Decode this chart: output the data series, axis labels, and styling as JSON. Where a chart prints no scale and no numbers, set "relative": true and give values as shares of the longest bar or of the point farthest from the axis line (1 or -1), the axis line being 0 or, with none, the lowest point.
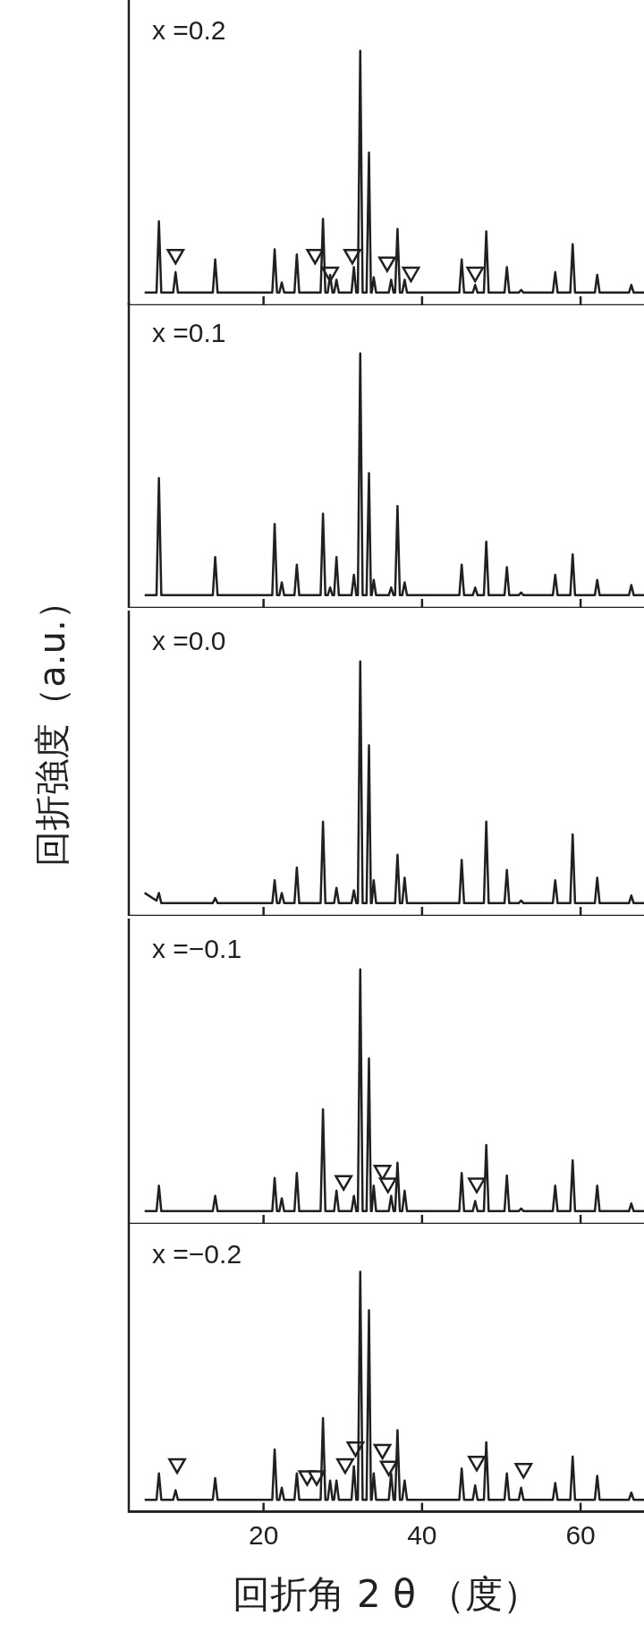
{
  "chart_data": [
    {
      "type": "line",
      "title": "x =0.2",
      "relative": true,
      "xlim": [
        3,
        68
      ],
      "xticks": [
        20,
        40,
        60
      ],
      "tick_labels": false,
      "x": [
        5,
        6.5,
        6.8,
        7.1,
        8.6,
        8.9,
        9.2,
        13.6,
        13.9,
        14.2,
        21.1,
        21.4,
        21.7,
        22.0,
        22.3,
        22.6,
        23.9,
        24.2,
        24.5,
        27.2,
        27.5,
        27.8,
        28.1,
        28.4,
        28.7,
        28.9,
        29.2,
        29.5,
        31.1,
        31.4,
        31.7,
        31.9,
        32.2,
        32.5,
        33.0,
        33.3,
        33.55,
        33.65,
        33.9,
        34.2,
        35.8,
        36.1,
        36.4,
        36.6,
        36.9,
        37.2,
        37.5,
        37.8,
        38.1,
        44.7,
        45.0,
        45.3,
        46.4,
        46.7,
        47.0,
        47.8,
        48.1,
        48.4,
        50.4,
        50.7,
        51.0,
        52.2,
        52.5,
        52.8,
        56.5,
        56.8,
        57.1,
        58.7,
        59.0,
        59.3,
        61.8,
        62.1,
        62.4,
        66.1,
        66.4,
        66.7,
        68
      ],
      "series": [
        {
          "color": "#231f20",
          "marker": "none",
          "values": [
            0.05,
            0.05,
            0.33,
            0.05,
            0.05,
            0.13,
            0.05,
            0.05,
            0.18,
            0.05,
            0.05,
            0.22,
            0.05,
            0.05,
            0.09,
            0.05,
            0.05,
            0.2,
            0.05,
            0.05,
            0.34,
            0.05,
            0.05,
            0.12,
            0.05,
            0.05,
            0.1,
            0.05,
            0.05,
            0.15,
            0.05,
            0.05,
            1,
            0.05,
            0.05,
            0.6,
            0.05,
            0.05,
            0.11,
            0.05,
            0.05,
            0.1,
            0.05,
            0.05,
            0.3,
            0.05,
            0.05,
            0.1,
            0.05,
            0.05,
            0.18,
            0.05,
            0.05,
            0.08,
            0.05,
            0.05,
            0.29,
            0.05,
            0.05,
            0.15,
            0.05,
            0.05,
            0.06,
            0.05,
            0.05,
            0.13,
            0.05,
            0.05,
            0.24,
            0.05,
            0.05,
            0.12,
            0.05,
            0.05,
            0.08,
            0.05,
            0.05
          ]
        },
        {
          "type": "scatter",
          "color": "#231f20",
          "marker": "triangle",
          "x": [
            8.9,
            26.5,
            28.4,
            31.2,
            35.6,
            38.6,
            46.7
          ],
          "values": [
            0.2,
            0.2,
            0.13,
            0.2,
            0.17,
            0.13,
            0.13
          ]
        }
      ]
    },
    {
      "type": "line",
      "title": "x =0.1",
      "relative": true,
      "xlim": [
        3,
        68
      ],
      "xticks": [
        20,
        40,
        60
      ],
      "tick_labels": false,
      "x": [
        5,
        6.5,
        6.8,
        7.1,
        8.6,
        8.9,
        9.2,
        13.6,
        13.9,
        14.2,
        21.1,
        21.4,
        21.7,
        22.0,
        22.3,
        22.6,
        23.9,
        24.2,
        24.5,
        27.2,
        27.5,
        27.8,
        28.1,
        28.4,
        28.7,
        28.9,
        29.2,
        29.5,
        31.1,
        31.4,
        31.7,
        31.9,
        32.2,
        32.5,
        33.0,
        33.3,
        33.55,
        33.65,
        33.9,
        34.2,
        35.8,
        36.1,
        36.4,
        36.6,
        36.9,
        37.2,
        37.5,
        37.8,
        38.1,
        44.7,
        45.0,
        45.3,
        46.4,
        46.7,
        47.0,
        47.8,
        48.1,
        48.4,
        50.4,
        50.7,
        51.0,
        52.2,
        52.5,
        52.8,
        56.5,
        56.8,
        57.1,
        58.7,
        59.0,
        59.3,
        61.8,
        62.1,
        62.4,
        66.1,
        66.4,
        66.7,
        68
      ],
      "series": [
        {
          "color": "#231f20",
          "marker": "none",
          "values": [
            0.05,
            0.05,
            0.51,
            0.05,
            0.05,
            0.05,
            0.05,
            0.05,
            0.2,
            0.05,
            0.05,
            0.33,
            0.05,
            0.05,
            0.1,
            0.05,
            0.05,
            0.17,
            0.05,
            0.05,
            0.37,
            0.05,
            0.05,
            0.08,
            0.05,
            0.05,
            0.2,
            0.05,
            0.05,
            0.13,
            0.05,
            0.05,
            1,
            0.05,
            0.05,
            0.53,
            0.05,
            0.05,
            0.11,
            0.05,
            0.05,
            0.08,
            0.05,
            0.05,
            0.4,
            0.05,
            0.05,
            0.1,
            0.05,
            0.05,
            0.17,
            0.05,
            0.05,
            0.08,
            0.05,
            0.05,
            0.26,
            0.05,
            0.05,
            0.16,
            0.05,
            0.05,
            0.06,
            0.05,
            0.05,
            0.13,
            0.05,
            0.05,
            0.21,
            0.05,
            0.05,
            0.11,
            0.05,
            0.05,
            0.09,
            0.05,
            0.05
          ]
        }
      ]
    },
    {
      "type": "line",
      "title": "x =0.0",
      "ylabel": "回折強度（a.u.）",
      "relative": true,
      "xlim": [
        3,
        68
      ],
      "xticks": [
        20,
        40,
        60
      ],
      "tick_labels": false,
      "x": [
        5,
        6.5,
        6.8,
        7.1,
        8.6,
        8.9,
        9.2,
        13.6,
        13.9,
        14.2,
        21.1,
        21.4,
        21.7,
        22.0,
        22.3,
        22.6,
        23.9,
        24.2,
        24.5,
        27.2,
        27.5,
        27.8,
        28.1,
        28.4,
        28.7,
        28.9,
        29.2,
        29.5,
        31.1,
        31.4,
        31.7,
        31.9,
        32.2,
        32.5,
        33.0,
        33.3,
        33.55,
        33.65,
        33.9,
        34.2,
        35.8,
        36.1,
        36.4,
        36.6,
        36.9,
        37.2,
        37.5,
        37.8,
        38.1,
        44.7,
        45.0,
        45.3,
        46.4,
        46.7,
        47.0,
        47.8,
        48.1,
        48.4,
        50.4,
        50.7,
        51.0,
        52.2,
        52.5,
        52.8,
        56.5,
        56.8,
        57.1,
        58.7,
        59.0,
        59.3,
        61.8,
        62.1,
        62.4,
        66.1,
        66.4,
        66.7,
        68
      ],
      "series": [
        {
          "color": "#231f20",
          "marker": "none",
          "values": [
            0.09,
            0.06,
            0.09,
            0.05,
            0.05,
            0.05,
            0.05,
            0.05,
            0.07,
            0.05,
            0.05,
            0.14,
            0.05,
            0.05,
            0.09,
            0.05,
            0.05,
            0.19,
            0.05,
            0.05,
            0.37,
            0.05,
            0.05,
            0.05,
            0.05,
            0.05,
            0.11,
            0.05,
            0.05,
            0.1,
            0.05,
            0.05,
            1,
            0.05,
            0.05,
            0.67,
            0.05,
            0.05,
            0.14,
            0.05,
            0.05,
            0.05,
            0.05,
            0.05,
            0.24,
            0.05,
            0.05,
            0.15,
            0.05,
            0.05,
            0.22,
            0.05,
            0.05,
            0.05,
            0.05,
            0.05,
            0.37,
            0.05,
            0.05,
            0.18,
            0.05,
            0.05,
            0.06,
            0.05,
            0.05,
            0.14,
            0.05,
            0.05,
            0.32,
            0.05,
            0.05,
            0.15,
            0.05,
            0.05,
            0.08,
            0.05,
            0.05
          ]
        }
      ]
    },
    {
      "type": "line",
      "title": "x =−0.1",
      "relative": true,
      "xlim": [
        3,
        68
      ],
      "xticks": [
        20,
        40,
        60
      ],
      "tick_labels": false,
      "x": [
        5,
        6.5,
        6.8,
        7.1,
        8.6,
        8.9,
        9.2,
        13.6,
        13.9,
        14.2,
        21.1,
        21.4,
        21.7,
        22.0,
        22.3,
        22.6,
        23.9,
        24.2,
        24.5,
        27.2,
        27.5,
        27.8,
        28.1,
        28.4,
        28.7,
        28.9,
        29.2,
        29.5,
        31.1,
        31.4,
        31.7,
        31.9,
        32.2,
        32.5,
        33.0,
        33.3,
        33.55,
        33.65,
        33.9,
        34.2,
        35.8,
        36.1,
        36.4,
        36.6,
        36.9,
        37.2,
        37.5,
        37.8,
        38.1,
        44.7,
        45.0,
        45.3,
        46.4,
        46.7,
        47.0,
        47.8,
        48.1,
        48.4,
        50.4,
        50.7,
        51.0,
        52.2,
        52.5,
        52.8,
        56.5,
        56.8,
        57.1,
        58.7,
        59.0,
        59.3,
        61.8,
        62.1,
        62.4,
        66.1,
        66.4,
        66.7,
        68
      ],
      "series": [
        {
          "color": "#231f20",
          "marker": "none",
          "values": [
            0.05,
            0.05,
            0.15,
            0.05,
            0.05,
            0.05,
            0.05,
            0.05,
            0.11,
            0.05,
            0.05,
            0.18,
            0.05,
            0.05,
            0.1,
            0.05,
            0.05,
            0.2,
            0.05,
            0.05,
            0.45,
            0.05,
            0.05,
            0.05,
            0.05,
            0.05,
            0.13,
            0.05,
            0.05,
            0.11,
            0.05,
            0.05,
            1,
            0.05,
            0.05,
            0.65,
            0.05,
            0.05,
            0.15,
            0.05,
            0.05,
            0.11,
            0.05,
            0.05,
            0.24,
            0.05,
            0.05,
            0.13,
            0.05,
            0.05,
            0.2,
            0.05,
            0.05,
            0.09,
            0.05,
            0.05,
            0.31,
            0.05,
            0.05,
            0.19,
            0.05,
            0.05,
            0.06,
            0.05,
            0.05,
            0.15,
            0.05,
            0.05,
            0.25,
            0.05,
            0.05,
            0.15,
            0.05,
            0.05,
            0.08,
            0.05,
            0.05
          ]
        },
        {
          "type": "scatter",
          "color": "#231f20",
          "marker": "triangle",
          "x": [
            30.1,
            35.0,
            35.7,
            46.9
          ],
          "values": [
            0.17,
            0.21,
            0.16,
            0.16
          ]
        }
      ]
    },
    {
      "type": "line",
      "title": "x =−0.2",
      "xlabel": "回折角 2 θ （度）",
      "relative": true,
      "xlim": [
        3,
        68
      ],
      "xticks": [
        20,
        40,
        60
      ],
      "tick_labels": "x",
      "x": [
        5,
        6.5,
        6.8,
        7.1,
        8.6,
        8.9,
        9.2,
        13.6,
        13.9,
        14.2,
        21.1,
        21.4,
        21.7,
        22.0,
        22.3,
        22.6,
        23.9,
        24.2,
        24.5,
        27.2,
        27.5,
        27.8,
        28.1,
        28.4,
        28.7,
        28.9,
        29.2,
        29.5,
        31.1,
        31.4,
        31.7,
        31.9,
        32.2,
        32.5,
        33.0,
        33.3,
        33.55,
        33.65,
        33.9,
        34.2,
        35.8,
        36.1,
        36.4,
        36.6,
        36.9,
        37.2,
        37.5,
        37.8,
        38.1,
        44.7,
        45.0,
        45.3,
        46.4,
        46.7,
        47.0,
        47.8,
        48.1,
        48.4,
        50.4,
        50.7,
        51.0,
        52.2,
        52.5,
        52.8,
        56.5,
        56.8,
        57.1,
        58.7,
        59.0,
        59.3,
        61.8,
        62.1,
        62.4,
        66.1,
        66.4,
        66.7,
        68
      ],
      "series": [
        {
          "color": "#231f20",
          "marker": "none",
          "values": [
            0.05,
            0.05,
            0.16,
            0.05,
            0.05,
            0.09,
            0.05,
            0.05,
            0.14,
            0.05,
            0.05,
            0.26,
            0.05,
            0.05,
            0.1,
            0.05,
            0.05,
            0.16,
            0.05,
            0.05,
            0.39,
            0.05,
            0.05,
            0.13,
            0.05,
            0.05,
            0.13,
            0.05,
            0.05,
            0.19,
            0.05,
            0.05,
            1,
            0.05,
            0.05,
            0.84,
            0.05,
            0.05,
            0.16,
            0.05,
            0.05,
            0.16,
            0.05,
            0.05,
            0.34,
            0.05,
            0.05,
            0.13,
            0.05,
            0.05,
            0.18,
            0.05,
            0.05,
            0.11,
            0.05,
            0.05,
            0.29,
            0.05,
            0.05,
            0.16,
            0.05,
            0.05,
            0.1,
            0.05,
            0.05,
            0.12,
            0.05,
            0.05,
            0.23,
            0.05,
            0.05,
            0.15,
            0.05,
            0.05,
            0.08,
            0.05,
            0.05
          ]
        },
        {
          "type": "scatter",
          "color": "#231f20",
          "marker": "triangle",
          "x": [
            9.1,
            25.5,
            26.7,
            30.3,
            31.6,
            35.0,
            35.8,
            46.9,
            52.8
          ],
          "values": [
            0.2,
            0.15,
            0.15,
            0.2,
            0.27,
            0.26,
            0.19,
            0.21,
            0.18
          ]
        }
      ]
    }
  ]
}
